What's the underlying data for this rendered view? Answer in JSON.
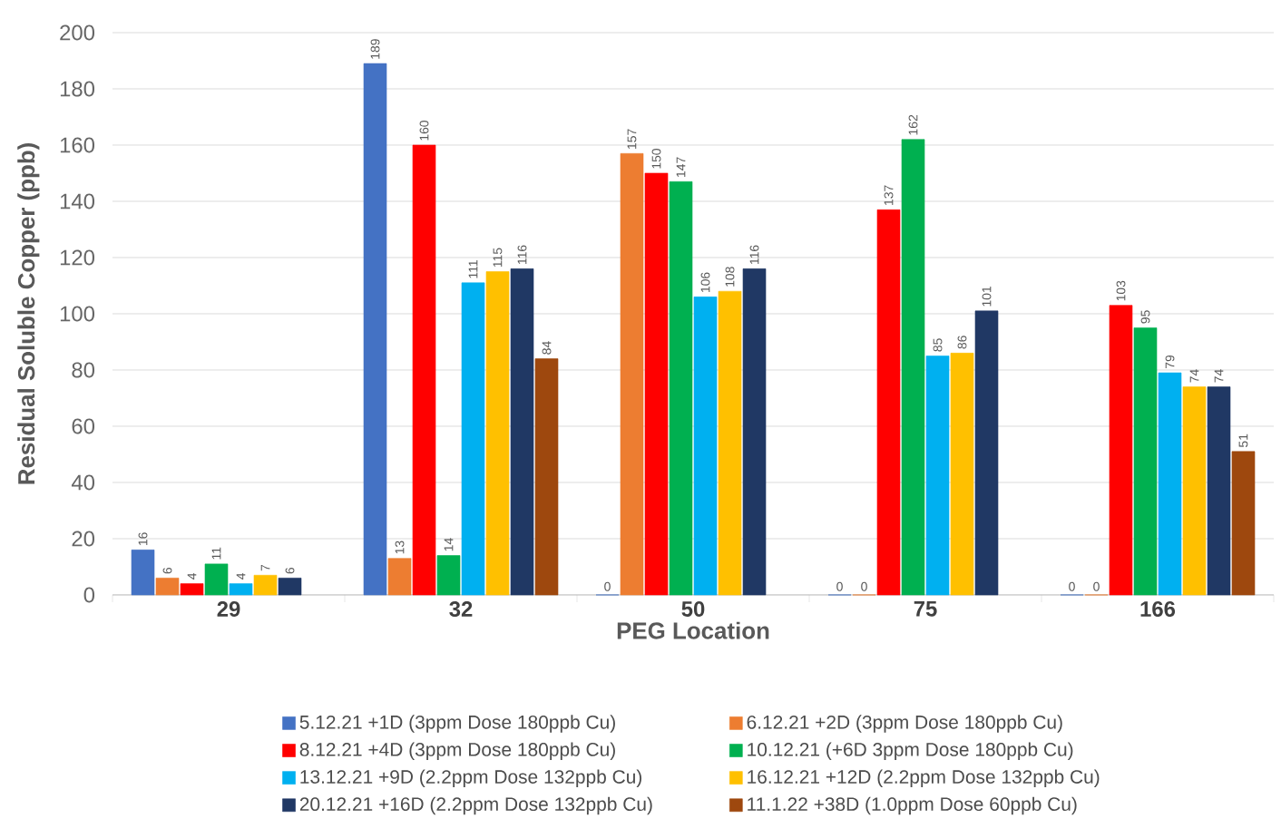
{
  "chart_data": {
    "type": "bar",
    "xlabel": "PEG Location",
    "ylabel": "Residual Soluble Copper (ppb)",
    "categories": [
      "29",
      "32",
      "50",
      "75",
      "166"
    ],
    "series": [
      {
        "name": "5.12.21 +1D (3ppm Dose 180ppb Cu)",
        "color": "#4472c4",
        "values": [
          16,
          189,
          0,
          0,
          0
        ]
      },
      {
        "name": "6.12.21 +2D (3ppm Dose 180ppb Cu)",
        "color": "#ed7d31",
        "values": [
          6,
          13,
          157,
          0,
          0
        ]
      },
      {
        "name": "8.12.21 +4D (3ppm Dose 180ppb Cu)",
        "color": "#ff0000",
        "values": [
          4,
          160,
          150,
          137,
          103
        ]
      },
      {
        "name": "10.12.21 (+6D 3ppm Dose 180ppb Cu)",
        "color": "#00b050",
        "values": [
          11,
          14,
          147,
          162,
          95
        ]
      },
      {
        "name": "13.12.21 +9D (2.2ppm Dose 132ppb Cu)",
        "color": "#00b0f0",
        "values": [
          4,
          111,
          106,
          85,
          79
        ]
      },
      {
        "name": "16.12.21 +12D (2.2ppm Dose 132ppb Cu)",
        "color": "#ffc000",
        "values": [
          7,
          115,
          108,
          86,
          74
        ]
      },
      {
        "name": "20.12.21 +16D (2.2ppm Dose 132ppb Cu)",
        "color": "#203864",
        "values": [
          6,
          116,
          116,
          101,
          74
        ]
      },
      {
        "name": "11.1.22 +38D (1.0ppm Dose 60ppb Cu)",
        "color": "#9e480e",
        "values": [
          null,
          84,
          null,
          null,
          51
        ]
      }
    ],
    "ylim": [
      0,
      200
    ],
    "yticks": [
      0,
      20,
      40,
      60,
      80,
      100,
      120,
      140,
      160,
      180,
      200
    ],
    "grid": "y",
    "legend": "bottom",
    "data_labels": true
  }
}
